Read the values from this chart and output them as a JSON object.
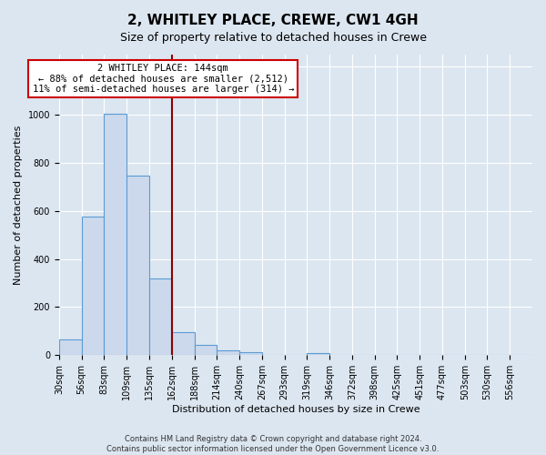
{
  "title": "2, WHITLEY PLACE, CREWE, CW1 4GH",
  "subtitle": "Size of property relative to detached houses in Crewe",
  "xlabel": "Distribution of detached houses by size in Crewe",
  "ylabel": "Number of detached properties",
  "bar_labels": [
    "30sqm",
    "56sqm",
    "83sqm",
    "109sqm",
    "135sqm",
    "162sqm",
    "188sqm",
    "214sqm",
    "240sqm",
    "267sqm",
    "293sqm",
    "319sqm",
    "346sqm",
    "372sqm",
    "398sqm",
    "425sqm",
    "451sqm",
    "477sqm",
    "503sqm",
    "530sqm",
    "556sqm"
  ],
  "bar_values": [
    65,
    575,
    1005,
    745,
    320,
    95,
    42,
    22,
    12,
    0,
    0,
    10,
    0,
    0,
    0,
    0,
    0,
    0,
    0,
    0,
    0
  ],
  "bar_color": "#ccd9ec",
  "bar_edge_color": "#5b9bd5",
  "vline_color": "#8b0000",
  "annotation_title": "2 WHITLEY PLACE: 144sqm",
  "annotation_line1": "← 88% of detached houses are smaller (2,512)",
  "annotation_line2": "11% of semi-detached houses are larger (314) →",
  "annotation_box_color": "#ffffff",
  "annotation_box_edge_color": "#cc0000",
  "ylim": [
    0,
    1250
  ],
  "yticks": [
    0,
    200,
    400,
    600,
    800,
    1000,
    1200
  ],
  "background_color": "#dce6f0",
  "footer_line1": "Contains HM Land Registry data © Crown copyright and database right 2024.",
  "footer_line2": "Contains public sector information licensed under the Open Government Licence v3.0.",
  "title_fontsize": 11,
  "subtitle_fontsize": 9,
  "axis_label_fontsize": 8,
  "tick_fontsize": 7,
  "annot_fontsize": 7.5
}
